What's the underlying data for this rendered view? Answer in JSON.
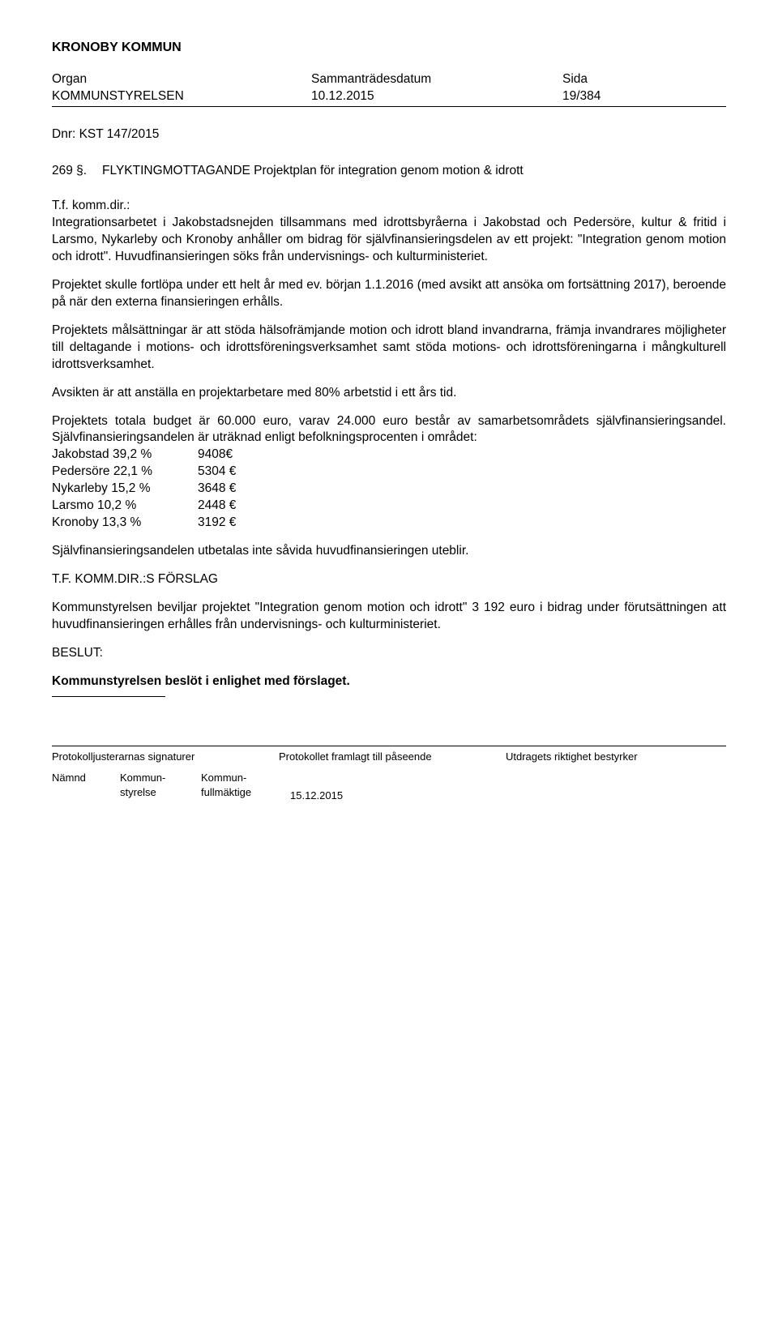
{
  "header": {
    "org_title": "KRONOBY KOMMUN",
    "organ_label": "Organ",
    "organ_value": "KOMMUNSTYRELSEN",
    "date_label": "Sammanträdesdatum",
    "date_value": "10.12.2015",
    "page_label": "Sida",
    "page_value": "19/384"
  },
  "dnr": "Dnr: KST 147/2015",
  "item": {
    "num": "269 §.",
    "title": "FLYKTINGMOTTAGANDE   Projektplan för integration genom motion & idrott"
  },
  "paras": {
    "lead": "T.f. komm.dir.:",
    "p1": "Integrationsarbetet i Jakobstadsnejden tillsammans med idrottsbyråerna i Jakobstad och Pedersöre, kultur & fritid i Larsmo, Nykarleby och Kronoby anhåller om bidrag för självfinansieringsdelen av ett projekt: \"Integration genom motion och idrott\". Huvudfinansieringen söks från undervisnings- och kulturministeriet.",
    "p2": "Projektet skulle fortlöpa under ett helt år med ev. början 1.1.2016 (med avsikt att ansöka om fortsättning 2017), beroende på när den externa finansieringen erhålls.",
    "p3": "Projektets målsättningar är att stöda hälsofrämjande motion och idrott bland invandrarna, främja invandrares möjligheter till deltagande i motions- och idrottsföreningsverksamhet samt stöda motions- och idrottsföreningarna i mångkulturell idrottsverksamhet.",
    "p4": "Avsikten är att anställa en projektarbetare med 80% arbetstid i ett års tid.",
    "p5": "Projektets totala budget är 60.000 euro, varav 24.000 euro består av samarbetsområdets självfinansieringsandel. Självfinansieringsandelen är uträknad enligt befolkningsprocenten i området:",
    "p6": "Självfinansieringsandelen utbetalas inte såvida huvudfinansieringen uteblir.",
    "forslag_head": "T.F. KOMM.DIR.:S FÖRSLAG",
    "forslag_body": "Kommunstyrelsen beviljar projektet \"Integration genom motion och idrott\" 3 192 euro i bidrag under förutsättningen att  huvudfinansieringen erhålles från undervisnings- och kulturministeriet.",
    "beslut_head": "BESLUT:",
    "beslut_body": "Kommunstyrelsen beslöt i enlighet med förslaget."
  },
  "financing": [
    {
      "label": "Jakobstad 39,2 %",
      "value": "9408€"
    },
    {
      "label": "Pedersöre 22,1 %",
      "value": "5304 €"
    },
    {
      "label": "Nykarleby 15,2 %",
      "value": "3648 €"
    },
    {
      "label": "Larsmo 10,2 %",
      "value": "2448 €"
    },
    {
      "label": "Kronoby 13,3 %",
      "value": "3192 €"
    }
  ],
  "footer": {
    "col_a": "Protokolljusterarnas signaturer",
    "col_b": "Protokollet framlagt till påseende",
    "col_c": "Utdragets riktighet bestyrker",
    "namnd": "Nämnd",
    "kommun1": "Kommun-\nstyrelse",
    "kommun2": "Kommun-\nfullmäktige",
    "date": "15.12.2015"
  }
}
